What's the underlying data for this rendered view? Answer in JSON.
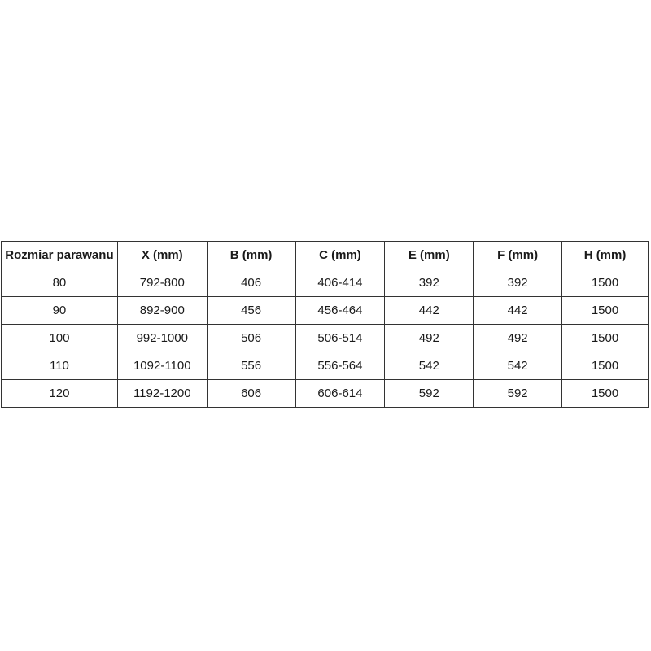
{
  "table": {
    "headers": [
      "Rozmiar parawanu",
      "X (mm)",
      "B (mm)",
      "C (mm)",
      "E (mm)",
      "F (mm)",
      "H (mm)"
    ],
    "rows": [
      [
        "80",
        "792-800",
        "406",
        "406-414",
        "392",
        "392",
        "1500"
      ],
      [
        "90",
        "892-900",
        "456",
        "456-464",
        "442",
        "442",
        "1500"
      ],
      [
        "100",
        "992-1000",
        "506",
        "506-514",
        "492",
        "492",
        "1500"
      ],
      [
        "110",
        "1092-1100",
        "556",
        "556-564",
        "542",
        "542",
        "1500"
      ],
      [
        "120",
        "1192-1200",
        "606",
        "606-614",
        "592",
        "592",
        "1500"
      ]
    ]
  }
}
